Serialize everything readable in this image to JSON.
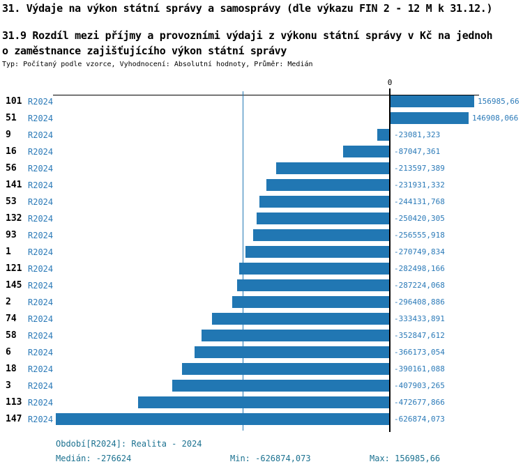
{
  "header": {
    "title": "31. Výdaje na výkon státní správy a samosprávy (dle výkazu FIN 2 - 12 M k 31.12.)",
    "subtitle_line1": "31.9 Rozdíl mezi příjmy a provozními výdaji z výkonu státní správy v Kč na jednoh",
    "subtitle_line2": "o zaměstnance zajišťujícího výkon státní správy",
    "meta": "Typ: Počítaný podle vzorce, Vyhodnocení: Absolutní hodnoty, Průměr: Medián"
  },
  "chart_data": {
    "type": "bar",
    "orientation": "horizontal",
    "zero_tick_label": "0",
    "period_label": "R2024",
    "categories": [
      "101",
      "51",
      "9",
      "16",
      "56",
      "141",
      "53",
      "132",
      "93",
      "1",
      "121",
      "145",
      "2",
      "74",
      "58",
      "6",
      "18",
      "3",
      "113",
      "147"
    ],
    "values": [
      156985.66,
      146908.066,
      -23081.323,
      -87047.361,
      -213597.389,
      -231931.332,
      -244131.768,
      -250420.305,
      -256555.918,
      -270749.834,
      -282498.166,
      -287224.068,
      -296408.886,
      -333433.891,
      -352847.612,
      -366173.054,
      -390161.088,
      -407903.265,
      -472677.866,
      -626874.073
    ],
    "value_labels": [
      "156985,66",
      "146908,066",
      "-23081,323",
      "-87047,361",
      "-213597,389",
      "-231931,332",
      "-244131,768",
      "-250420,305",
      "-256555,918",
      "-270749,834",
      "-282498,166",
      "-287224,068",
      "-296408,886",
      "-333433,891",
      "-352847,612",
      "-366173,054",
      "-390161,088",
      "-407903,265",
      "-472677,866",
      "-626874,073"
    ],
    "median": -276624,
    "min": -626874.073,
    "max": 156985.66,
    "xlim": [
      -636000,
      167500
    ],
    "legend_position": "none",
    "grid": false
  },
  "footer": {
    "period": "Období[R2024]: Realita - 2024",
    "median": "Medián: -276624",
    "min": "Min: -626874,073",
    "max": "Max: 156985,66"
  },
  "colors": {
    "bar": "#2177b3",
    "value_label": "#2b7ab8",
    "link": "#2b7ab8",
    "footer_text": "#1b7190",
    "axis": "#000000"
  }
}
